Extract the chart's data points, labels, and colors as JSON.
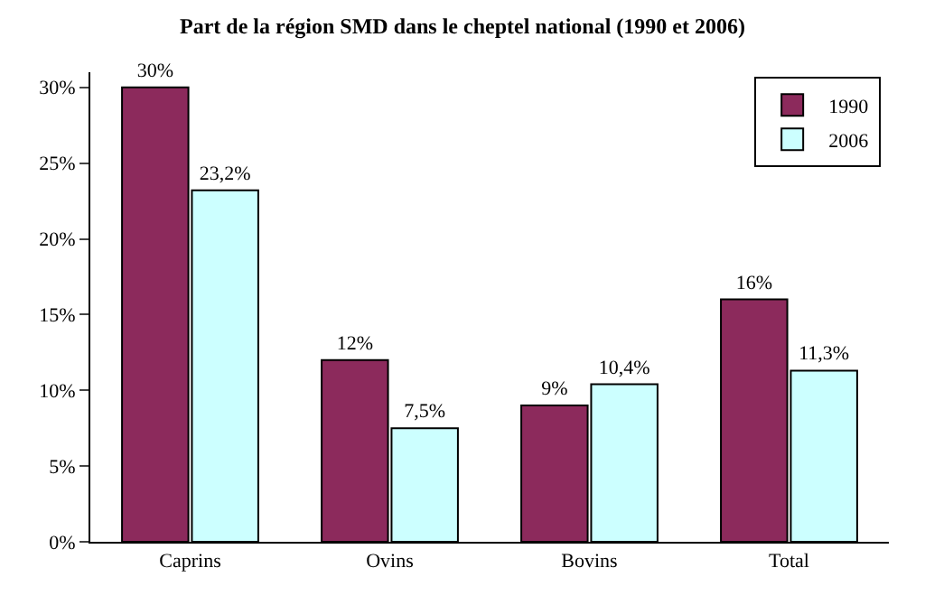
{
  "chart_data": {
    "type": "bar",
    "title": "Part de la région SMD dans le cheptel national (1990 et 2006)",
    "categories": [
      "Caprins",
      "Ovins",
      "Bovins",
      "Total"
    ],
    "series": [
      {
        "name": "1990",
        "color": "#8c2a5c",
        "values": [
          30,
          12,
          9,
          16
        ],
        "value_labels": [
          "30%",
          "12%",
          "9%",
          "16%"
        ]
      },
      {
        "name": "2006",
        "color": "#ccffff",
        "values": [
          23.2,
          7.5,
          10.4,
          11.3
        ],
        "value_labels": [
          "23,2%",
          "7,5%",
          "10,4%",
          "11,3%"
        ]
      }
    ],
    "ylim": [
      0,
      31
    ],
    "yticks": [
      {
        "value": 0,
        "label": "0%"
      },
      {
        "value": 5,
        "label": "5%"
      },
      {
        "value": 10,
        "label": "10%"
      },
      {
        "value": 15,
        "label": "15%"
      },
      {
        "value": 20,
        "label": "20%"
      },
      {
        "value": 25,
        "label": "25%"
      },
      {
        "value": 30,
        "label": "30%"
      }
    ],
    "grid": false,
    "legend": "top right"
  }
}
